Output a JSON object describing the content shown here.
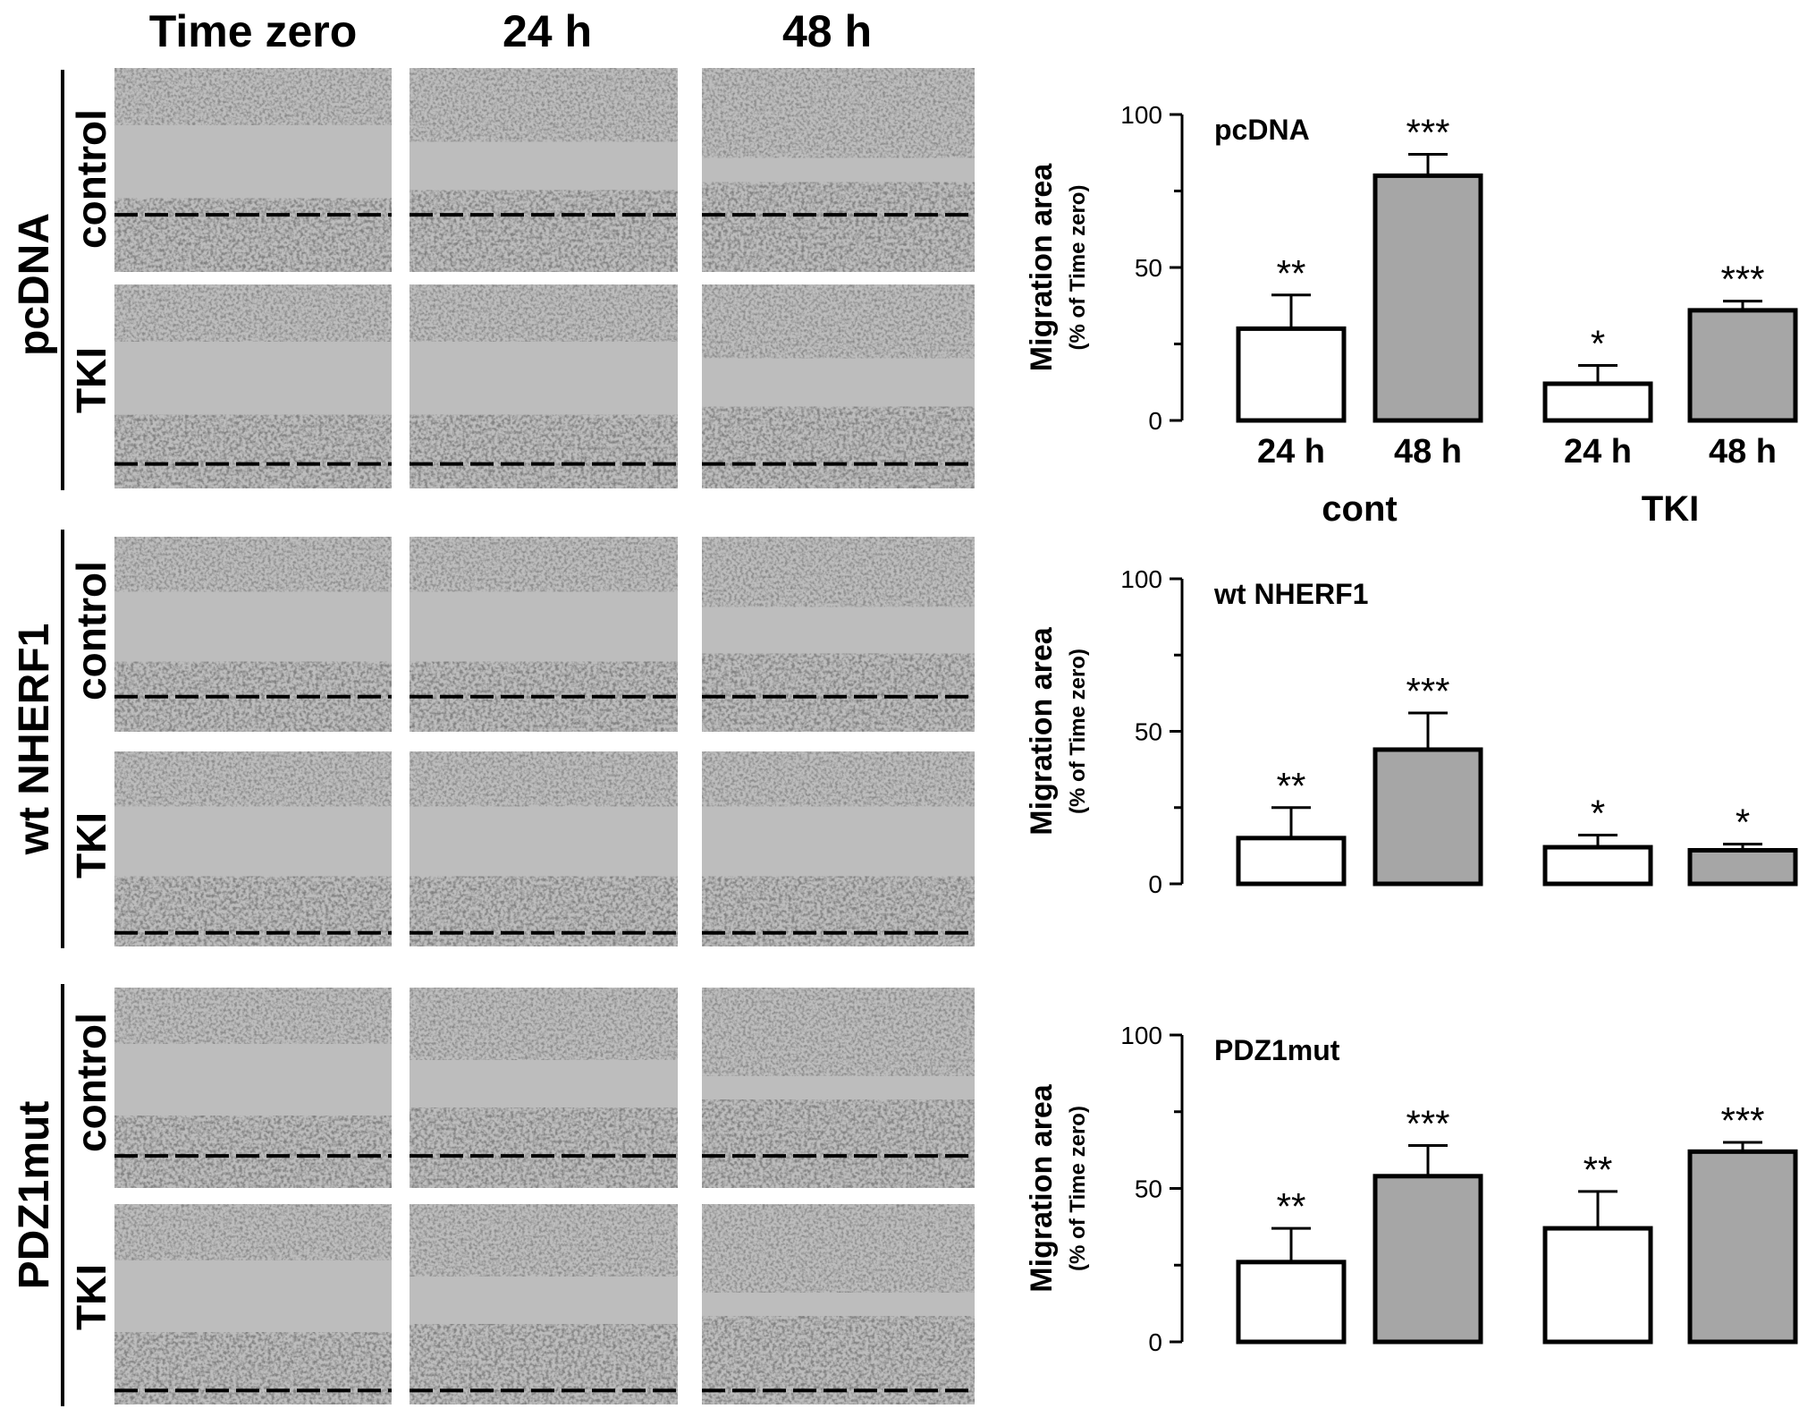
{
  "figure": {
    "column_headers": [
      "Time zero",
      "24 h",
      "48 h"
    ],
    "row_groups": [
      {
        "label": "pcDNA",
        "conditions": [
          "control",
          "TKI"
        ]
      },
      {
        "label": "wt NHERF1",
        "conditions": [
          "control",
          "TKI"
        ]
      },
      {
        "label": "PDZ1mut",
        "conditions": [
          "control",
          "TKI"
        ]
      }
    ],
    "micrograph_panels": [
      {
        "group": "pcDNA",
        "condition": "control",
        "time": "Time zero",
        "texture": "gap-wide"
      },
      {
        "group": "pcDNA",
        "condition": "control",
        "time": "24 h",
        "texture": "gap-medium"
      },
      {
        "group": "pcDNA",
        "condition": "control",
        "time": "48 h",
        "texture": "gap-closing"
      },
      {
        "group": "pcDNA",
        "condition": "TKI",
        "time": "Time zero",
        "texture": "gap-wide"
      },
      {
        "group": "pcDNA",
        "condition": "TKI",
        "time": "24 h",
        "texture": "gap-wide"
      },
      {
        "group": "pcDNA",
        "condition": "TKI",
        "time": "48 h",
        "texture": "gap-medium"
      },
      {
        "group": "wt NHERF1",
        "condition": "control",
        "time": "Time zero",
        "texture": "gap-wide"
      },
      {
        "group": "wt NHERF1",
        "condition": "control",
        "time": "24 h",
        "texture": "gap-wide"
      },
      {
        "group": "wt NHERF1",
        "condition": "control",
        "time": "48 h",
        "texture": "gap-medium"
      },
      {
        "group": "wt NHERF1",
        "condition": "TKI",
        "time": "Time zero",
        "texture": "gap-wide"
      },
      {
        "group": "wt NHERF1",
        "condition": "TKI",
        "time": "24 h",
        "texture": "gap-wide"
      },
      {
        "group": "wt NHERF1",
        "condition": "TKI",
        "time": "48 h",
        "texture": "gap-wide"
      },
      {
        "group": "PDZ1mut",
        "condition": "control",
        "time": "Time zero",
        "texture": "gap-wide"
      },
      {
        "group": "PDZ1mut",
        "condition": "control",
        "time": "24 h",
        "texture": "gap-medium"
      },
      {
        "group": "PDZ1mut",
        "condition": "control",
        "time": "48 h",
        "texture": "gap-closing"
      },
      {
        "group": "PDZ1mut",
        "condition": "TKI",
        "time": "Time zero",
        "texture": "gap-wide"
      },
      {
        "group": "PDZ1mut",
        "condition": "TKI",
        "time": "24 h",
        "texture": "gap-medium"
      },
      {
        "group": "PDZ1mut",
        "condition": "TKI",
        "time": "48 h",
        "texture": "gap-closing"
      }
    ]
  },
  "colors": {
    "bar_24h": "#ffffff",
    "bar_48h": "#a6a6a6",
    "axis": "#000000",
    "micrograph_gap": "#bdbdbd",
    "micrograph_cells": "#8c8c8c"
  },
  "chart_data": [
    {
      "type": "bar",
      "title": "pcDNA",
      "ylabel": "Migration area",
      "ylabel_sub": "(% of Time zero)",
      "ylim": [
        0,
        100
      ],
      "yticks": [
        0,
        50,
        100
      ],
      "groups": [
        "cont",
        "TKI"
      ],
      "categories": [
        "24 h",
        "48 h"
      ],
      "show_category_labels": true,
      "show_group_labels": true,
      "bars": [
        {
          "group": "cont",
          "category": "24 h",
          "value": 30,
          "error": 11,
          "sig": "**"
        },
        {
          "group": "cont",
          "category": "48 h",
          "value": 80,
          "error": 7,
          "sig": "***"
        },
        {
          "group": "TKI",
          "category": "24 h",
          "value": 12,
          "error": 6,
          "sig": "*"
        },
        {
          "group": "TKI",
          "category": "48 h",
          "value": 36,
          "error": 3,
          "sig": "***"
        }
      ]
    },
    {
      "type": "bar",
      "title": "wt NHERF1",
      "ylabel": "Migration area",
      "ylabel_sub": "(% of Time zero)",
      "ylim": [
        0,
        100
      ],
      "yticks": [
        0,
        50,
        100
      ],
      "groups": [
        "cont",
        "TKI"
      ],
      "categories": [
        "24 h",
        "48 h"
      ],
      "show_category_labels": false,
      "show_group_labels": false,
      "bars": [
        {
          "group": "cont",
          "category": "24 h",
          "value": 15,
          "error": 10,
          "sig": "**"
        },
        {
          "group": "cont",
          "category": "48 h",
          "value": 44,
          "error": 12,
          "sig": "***"
        },
        {
          "group": "TKI",
          "category": "24 h",
          "value": 12,
          "error": 4,
          "sig": "*"
        },
        {
          "group": "TKI",
          "category": "48 h",
          "value": 11,
          "error": 2,
          "sig": "*"
        }
      ]
    },
    {
      "type": "bar",
      "title": "PDZ1mut",
      "ylabel": "Migration area",
      "ylabel_sub": "(% of Time zero)",
      "ylim": [
        0,
        100
      ],
      "yticks": [
        0,
        50,
        100
      ],
      "groups": [
        "cont",
        "TKI"
      ],
      "categories": [
        "24 h",
        "48 h"
      ],
      "show_category_labels": false,
      "show_group_labels": false,
      "bars": [
        {
          "group": "cont",
          "category": "24 h",
          "value": 26,
          "error": 11,
          "sig": "**"
        },
        {
          "group": "cont",
          "category": "48 h",
          "value": 54,
          "error": 10,
          "sig": "***"
        },
        {
          "group": "TKI",
          "category": "24 h",
          "value": 37,
          "error": 12,
          "sig": "**"
        },
        {
          "group": "TKI",
          "category": "48 h",
          "value": 62,
          "error": 3,
          "sig": "***"
        }
      ]
    }
  ]
}
